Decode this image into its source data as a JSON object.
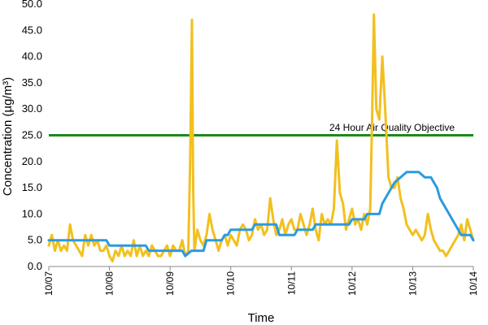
{
  "chart_data": {
    "type": "line",
    "xlabel": "Time",
    "ylabel": "Concentration (µg/m³)",
    "ylim": [
      0,
      50
    ],
    "yticks": [
      "0.0",
      "5.0",
      "10.0",
      "15.0",
      "20.0",
      "25.0",
      "30.0",
      "35.0",
      "40.0",
      "45.0",
      "50.0"
    ],
    "xlim": [
      0,
      7
    ],
    "xticks": [
      {
        "x": 0,
        "label": "10/07"
      },
      {
        "x": 1,
        "label": "10/08"
      },
      {
        "x": 2,
        "label": "10/09"
      },
      {
        "x": 3,
        "label": "10/10"
      },
      {
        "x": 4,
        "label": "10/11"
      },
      {
        "x": 5,
        "label": "10/12"
      },
      {
        "x": 6,
        "label": "10/13"
      },
      {
        "x": 7,
        "label": "10/14"
      }
    ],
    "grid": false,
    "objective": {
      "value": 25,
      "label": "24 Hour Air Quality Objective",
      "color": "#1a8a1a"
    },
    "series": [
      {
        "color": "#f2c01e",
        "x": [
          0.0,
          0.05,
          0.1,
          0.15,
          0.2,
          0.25,
          0.3,
          0.35,
          0.4,
          0.45,
          0.5,
          0.55,
          0.6,
          0.65,
          0.7,
          0.75,
          0.8,
          0.85,
          0.9,
          0.95,
          1.0,
          1.05,
          1.1,
          1.15,
          1.2,
          1.25,
          1.3,
          1.35,
          1.4,
          1.45,
          1.5,
          1.55,
          1.6,
          1.65,
          1.7,
          1.75,
          1.8,
          1.85,
          1.9,
          1.95,
          2.0,
          2.05,
          2.1,
          2.15,
          2.2,
          2.25,
          2.3,
          2.33,
          2.36,
          2.38,
          2.4,
          2.45,
          2.5,
          2.55,
          2.6,
          2.65,
          2.7,
          2.75,
          2.8,
          2.85,
          2.9,
          2.95,
          3.0,
          3.05,
          3.1,
          3.15,
          3.2,
          3.25,
          3.3,
          3.35,
          3.4,
          3.45,
          3.5,
          3.55,
          3.6,
          3.65,
          3.7,
          3.75,
          3.8,
          3.85,
          3.9,
          3.95,
          4.0,
          4.05,
          4.1,
          4.15,
          4.2,
          4.25,
          4.3,
          4.35,
          4.4,
          4.45,
          4.5,
          4.55,
          4.6,
          4.65,
          4.7,
          4.75,
          4.8,
          4.85,
          4.9,
          4.95,
          5.0,
          5.05,
          5.1,
          5.15,
          5.2,
          5.25,
          5.3,
          5.33,
          5.36,
          5.4,
          5.45,
          5.5,
          5.55,
          5.6,
          5.65,
          5.7,
          5.75,
          5.8,
          5.85,
          5.9,
          5.95,
          6.0,
          6.05,
          6.1,
          6.15,
          6.2,
          6.25,
          6.3,
          6.35,
          6.4,
          6.45,
          6.5,
          6.55,
          6.6,
          6.65,
          6.7,
          6.75,
          6.8,
          6.85,
          6.9,
          6.95,
          7.0
        ],
        "y": [
          4,
          6,
          3,
          5,
          3,
          4,
          3,
          8,
          5,
          4,
          3,
          2,
          6,
          4,
          6,
          4,
          5,
          3,
          3,
          4,
          2,
          1,
          3,
          2,
          4,
          2,
          3,
          2,
          5,
          2,
          4,
          2,
          3,
          2,
          4,
          3,
          2,
          2,
          3,
          4,
          2,
          4,
          3,
          3,
          5,
          2,
          3,
          20,
          47,
          15,
          3,
          7,
          5,
          4,
          6,
          10,
          7,
          5,
          3,
          5,
          6,
          4,
          6,
          5,
          4,
          7,
          8,
          7,
          5,
          6,
          9,
          7,
          8,
          6,
          7,
          13,
          9,
          6,
          7,
          9,
          6,
          8,
          9,
          7,
          7,
          10,
          8,
          6,
          8,
          11,
          7,
          5,
          10,
          8,
          9,
          8,
          11,
          24,
          14,
          12,
          7,
          9,
          11,
          8,
          9,
          7,
          10,
          8,
          11,
          28,
          48,
          30,
          28,
          40,
          29,
          17,
          15,
          15,
          17,
          13,
          11,
          8,
          7,
          6,
          7,
          6,
          5,
          6,
          10,
          7,
          5,
          4,
          3,
          3,
          2,
          3,
          4,
          5,
          6,
          8,
          5,
          9,
          7,
          5
        ]
      },
      {
        "color": "#2b9be0",
        "x": [
          0.0,
          0.05,
          0.1,
          0.6,
          0.95,
          1.0,
          1.6,
          1.65,
          2.2,
          2.25,
          2.35,
          2.4,
          2.55,
          2.6,
          2.85,
          2.9,
          2.95,
          3.0,
          3.35,
          3.4,
          3.75,
          3.8,
          4.05,
          4.1,
          4.2,
          4.25,
          4.35,
          4.4,
          4.7,
          4.75,
          4.95,
          5.0,
          5.2,
          5.25,
          5.45,
          5.5,
          5.7,
          5.8,
          5.9,
          6.0,
          6.1,
          6.2,
          6.3,
          6.35,
          6.4,
          6.45,
          6.5,
          6.6,
          6.65,
          6.7,
          6.75,
          6.8,
          6.85,
          6.9,
          6.95,
          7.0
        ],
        "y": [
          5,
          5,
          5,
          5,
          5,
          4,
          4,
          3,
          3,
          2,
          3,
          3,
          3,
          5,
          5,
          6,
          6,
          7,
          7,
          8,
          8,
          6,
          6,
          7,
          7,
          7,
          7,
          8,
          8,
          8,
          8,
          9,
          9,
          10,
          10,
          12,
          16,
          17,
          18,
          18,
          18,
          17,
          17,
          16,
          15,
          13,
          12,
          10,
          9,
          8,
          7,
          6,
          6,
          6,
          6,
          5
        ]
      }
    ]
  }
}
